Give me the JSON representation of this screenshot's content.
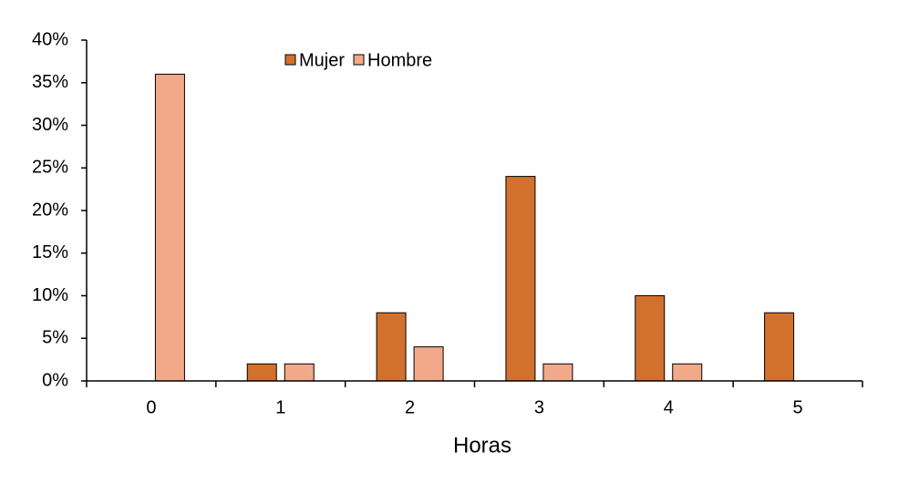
{
  "chart_data": {
    "type": "bar",
    "x_label": "Horas",
    "categories": [
      "0",
      "1",
      "2",
      "3",
      "4",
      "5"
    ],
    "series": [
      {
        "name": "Mujer",
        "color": "#d2702d",
        "values": [
          0,
          2,
          8,
          24,
          10,
          8
        ]
      },
      {
        "name": "Hombre",
        "color": "#f2a98a",
        "values": [
          36,
          2,
          4,
          2,
          2,
          0
        ]
      }
    ],
    "ylim": [
      0,
      40
    ],
    "yticks": [
      {
        "value": 0,
        "label": "0%"
      },
      {
        "value": 5,
        "label": "5%"
      },
      {
        "value": 10,
        "label": "10%"
      },
      {
        "value": 15,
        "label": "15%"
      },
      {
        "value": 20,
        "label": "20%"
      },
      {
        "value": 25,
        "label": "25%"
      },
      {
        "value": 30,
        "label": "30%"
      },
      {
        "value": 35,
        "label": "35%"
      },
      {
        "value": 40,
        "label": "40%"
      }
    ],
    "grid": false,
    "legend": "top"
  }
}
